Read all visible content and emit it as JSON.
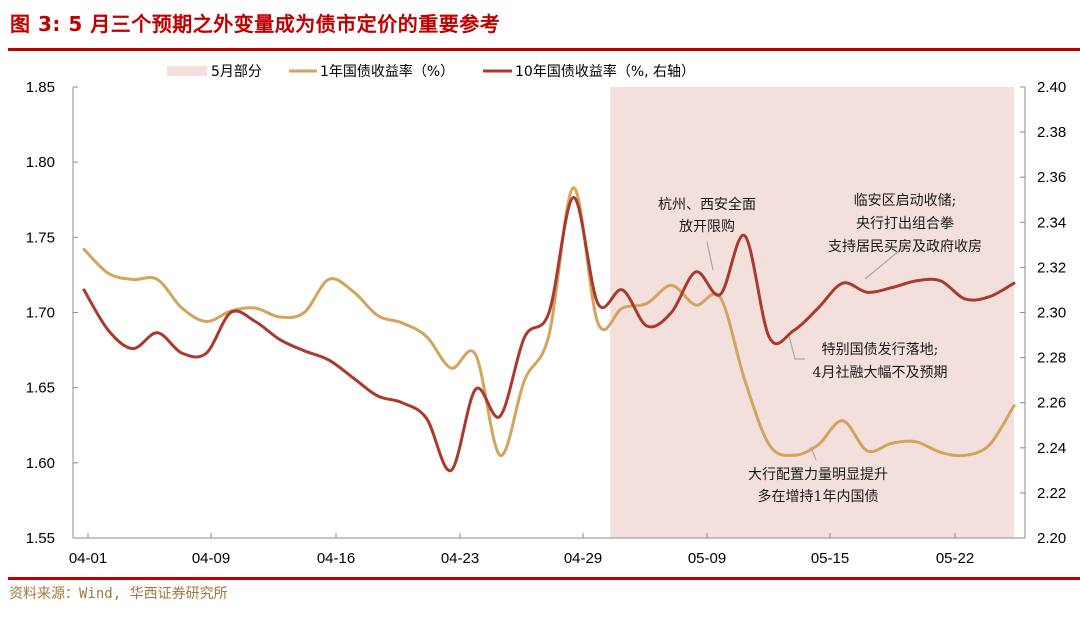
{
  "header": {
    "title": "图 3:  5 月三个预期之外变量成为债市定价的重要参考"
  },
  "footer": {
    "source": "资料来源：Wind, 华西证券研究所"
  },
  "colors": {
    "brand_red": "#c00000",
    "series_1y": "#d4a35c",
    "series_10y": "#a93a2c",
    "shade": "#f3e0dd",
    "source_text": "#a5773f"
  },
  "legend": {
    "items": [
      {
        "label": "5月部分",
        "type": "area"
      },
      {
        "label": "1年国债收益率（%）",
        "type": "line"
      },
      {
        "label": "10年国债收益率（%, 右轴）",
        "type": "line"
      }
    ]
  },
  "annotations": [
    {
      "lines": [
        "杭州、西安全面",
        "放开限购"
      ]
    },
    {
      "lines": [
        "临安区启动收储;",
        "央行打出组合拳",
        "支持居民买房及政府收房"
      ]
    },
    {
      "lines": [
        "特别国债发行落地;",
        "4月社融大幅不及预期"
      ]
    },
    {
      "lines": [
        "大行配置力量明显提升",
        "多在增持1年内国债"
      ]
    }
  ],
  "chart_data": {
    "type": "line",
    "title": "5月三个预期之外变量成为债市定价的重要参考",
    "xlabel": "",
    "ylabel": "1年国债收益率（%）",
    "y2label": "10年国债收益率（%, 右轴）",
    "ylim": [
      1.55,
      1.85
    ],
    "y2lim": [
      2.2,
      2.4
    ],
    "yticks": [
      "1.55",
      "1.60",
      "1.65",
      "1.70",
      "1.75",
      "1.80",
      "1.85"
    ],
    "y2ticks": [
      "2.20",
      "2.22",
      "2.24",
      "2.26",
      "2.28",
      "2.30",
      "2.32",
      "2.34",
      "2.36",
      "2.38",
      "2.40"
    ],
    "xticks": [
      "04-01",
      "04-09",
      "04-16",
      "04-23",
      "04-29",
      "05-09",
      "05-15",
      "05-22"
    ],
    "grid": false,
    "legend_position": "top",
    "shaded_region": {
      "label": "5月部分",
      "from": "05-06",
      "to": "05-27"
    },
    "x": [
      "04-01",
      "04-02",
      "04-03",
      "04-07",
      "04-08",
      "04-09",
      "04-10",
      "04-11",
      "04-12",
      "04-15",
      "04-16",
      "04-17",
      "04-18",
      "04-19",
      "04-22",
      "04-23",
      "04-24",
      "04-25",
      "04-26",
      "04-28",
      "04-29",
      "04-30",
      "05-06",
      "05-07",
      "05-08",
      "05-09",
      "05-10",
      "05-11",
      "05-13",
      "05-14",
      "05-15",
      "05-16",
      "05-17",
      "05-20",
      "05-21",
      "05-22",
      "05-23",
      "05-24",
      "05-27"
    ],
    "series": [
      {
        "name": "1年国债收益率（%）",
        "axis": "left",
        "values": [
          1.742,
          1.726,
          1.722,
          1.722,
          1.703,
          1.694,
          1.701,
          1.703,
          1.697,
          1.7,
          1.722,
          1.714,
          1.698,
          1.693,
          1.684,
          1.663,
          1.672,
          1.605,
          1.655,
          1.685,
          1.783,
          1.693,
          1.703,
          1.706,
          1.718,
          1.705,
          1.71,
          1.655,
          1.612,
          1.605,
          1.612,
          1.628,
          1.608,
          1.613,
          1.614,
          1.607,
          1.605,
          1.612,
          1.638
        ]
      },
      {
        "name": "10年国债收益率（%, 右轴）",
        "axis": "right",
        "values": [
          2.31,
          2.292,
          2.284,
          2.291,
          2.282,
          2.282,
          2.3,
          2.296,
          2.288,
          2.283,
          2.279,
          2.271,
          2.263,
          2.26,
          2.253,
          2.23,
          2.266,
          2.254,
          2.289,
          2.3,
          2.351,
          2.304,
          2.31,
          2.294,
          2.3,
          2.318,
          2.308,
          2.334,
          2.289,
          2.292,
          2.302,
          2.313,
          2.309,
          2.311,
          2.314,
          2.314,
          2.306,
          2.307,
          2.313
        ]
      }
    ]
  }
}
